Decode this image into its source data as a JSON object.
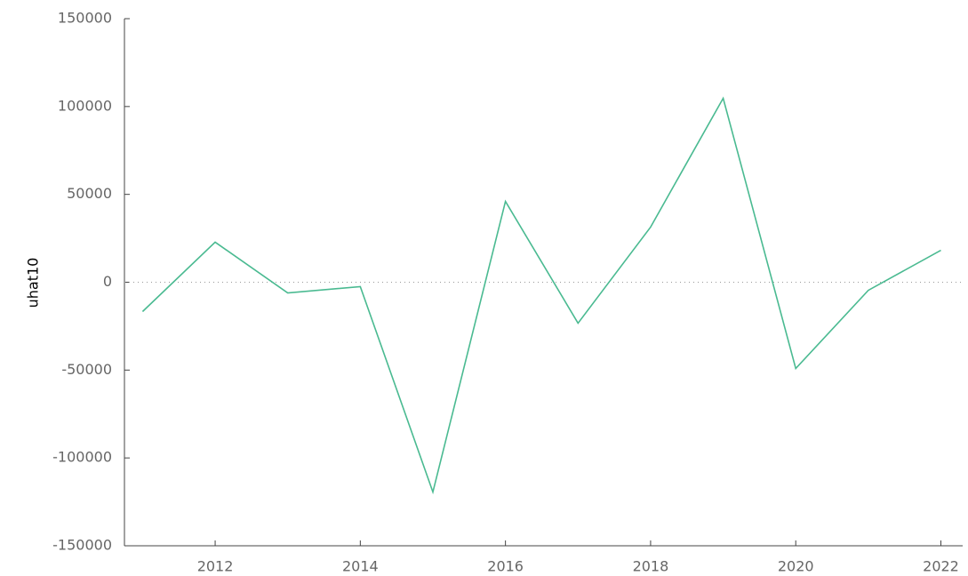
{
  "chart_data": {
    "type": "line",
    "y_label": "uhat10",
    "x": [
      2011,
      2012,
      2013,
      2014,
      2015,
      2016,
      2017,
      2018,
      2019,
      2020,
      2021,
      2022
    ],
    "series": [
      {
        "name": "uhat10",
        "color": "#4aba91",
        "values": [
          -16700,
          22800,
          -6100,
          -2500,
          -119400,
          46000,
          -23300,
          31400,
          104700,
          -49100,
          -4600,
          18200
        ]
      }
    ],
    "xlim": [
      2010.75,
      2022.3
    ],
    "xticks": [
      2012,
      2014,
      2016,
      2018,
      2020,
      2022
    ],
    "ylim": [
      -150000,
      150000
    ],
    "yticks": [
      -150000,
      -100000,
      -50000,
      0,
      50000,
      100000,
      150000
    ],
    "zero_line": true,
    "legend": false
  }
}
